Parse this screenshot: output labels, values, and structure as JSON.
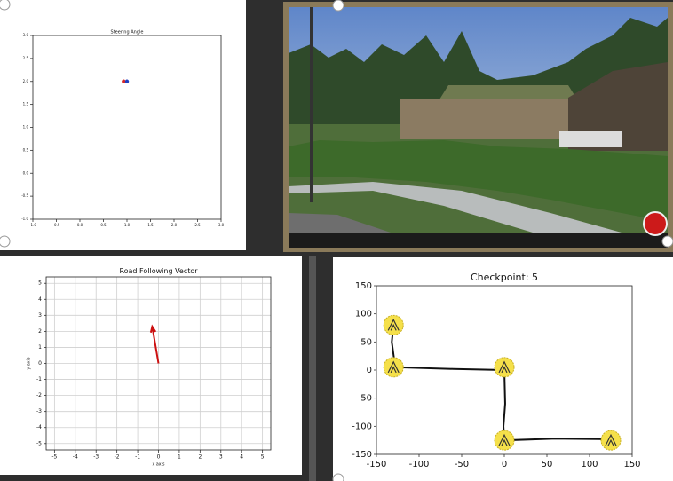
{
  "chart_data": [
    {
      "type": "scatter",
      "title": "Steering Angle",
      "series": [
        {
          "color": "#d62728",
          "x": [
            0.93
          ],
          "values": [
            2.0
          ]
        },
        {
          "color": "#1f3fbf",
          "x": [
            1.0
          ],
          "values": [
            2.0
          ]
        }
      ],
      "xlim": [
        -1.0,
        3.0
      ],
      "ylim": [
        -1.0,
        3.0
      ],
      "xticks": [
        {
          "value": -1,
          "label": "-1.0"
        },
        -0.5,
        {
          "value": 0,
          "label": "0.0"
        },
        0.5,
        {
          "value": 1,
          "label": "1.0"
        },
        1.5,
        {
          "value": 2,
          "label": "2.0"
        },
        2.5,
        {
          "value": 3,
          "label": "3.0"
        }
      ],
      "yticks": [
        {
          "value": -1,
          "label": "-1.0"
        },
        -0.5,
        {
          "value": 0,
          "label": "0.0"
        },
        0.5,
        {
          "value": 1,
          "label": "1.0"
        },
        1.5,
        {
          "value": 2,
          "label": "2.0"
        },
        2.5,
        {
          "value": 3,
          "label": "3.0"
        }
      ],
      "grid": false
    },
    {
      "type": "quiver",
      "title": "Road Following Vector",
      "x_label": "x axis",
      "y_label": "y axis",
      "origin": [
        0,
        0
      ],
      "vector": [
        -0.3,
        2.3
      ],
      "color": "#cc1111",
      "xlim": [
        -5.4,
        5.4
      ],
      "ylim": [
        -5.4,
        5.4
      ],
      "xticks": [
        -5,
        -4,
        -3,
        -2,
        -1,
        0,
        1,
        2,
        3,
        4,
        5
      ],
      "yticks": [
        -5,
        -4,
        -3,
        -2,
        -1,
        0,
        1,
        2,
        3,
        4,
        5
      ],
      "grid": true
    },
    {
      "type": "line",
      "title": "Checkpoint: 5",
      "series": [
        {
          "color": "#111111",
          "x": [
            -130,
            -132,
            -128,
            -60,
            0,
            1,
            -1,
            0,
            60,
            125
          ],
          "values": [
            80,
            50,
            5,
            2,
            0,
            -60,
            -100,
            -125,
            -122,
            -123
          ]
        }
      ],
      "checkpoints": {
        "color": "#f5e04a",
        "x": [
          -130,
          -130,
          0,
          0,
          125
        ],
        "y": [
          80,
          5,
          5,
          -125,
          -125
        ]
      },
      "xlim": [
        -150,
        150
      ],
      "ylim": [
        -150,
        150
      ],
      "xticks": [
        -150,
        -100,
        -50,
        0,
        50,
        100,
        150
      ],
      "yticks": [
        -150,
        -100,
        -50,
        0,
        50,
        100,
        150
      ],
      "grid": false
    }
  ]
}
